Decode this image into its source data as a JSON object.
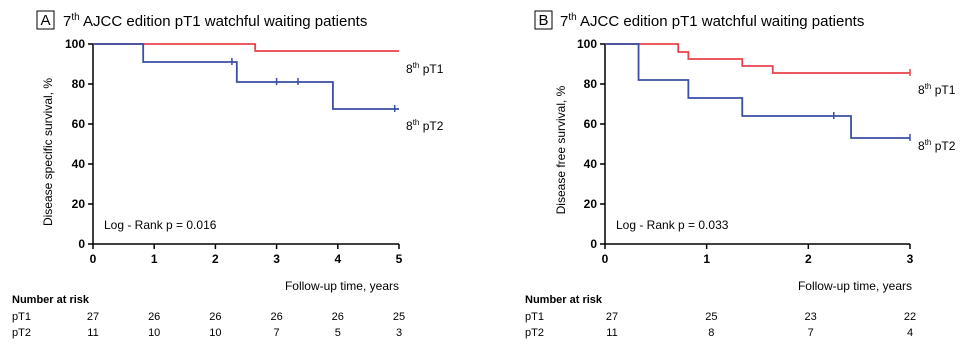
{
  "chart_data": [
    {
      "type": "line",
      "panel_label": "A",
      "title": "7th AJCC edition pT1 watchful waiting patients",
      "title_base": "7",
      "title_sup": "th",
      "title_rest": " AJCC edition pT1 watchful waiting patients",
      "xlabel": "Follow-up time, years",
      "ylabel": "Disease specific survival, %",
      "xlim": [
        0,
        5
      ],
      "ylim": [
        0,
        100
      ],
      "xticks": [
        "0",
        "1",
        "2",
        "3",
        "4",
        "5"
      ],
      "yticks": [
        "0",
        "20",
        "40",
        "60",
        "80",
        "100"
      ],
      "xtick_values": [
        0,
        1,
        2,
        3,
        4,
        5
      ],
      "ytick_values": [
        0,
        20,
        40,
        60,
        80,
        100
      ],
      "annotation": "Log - Rank p = 0.016",
      "series": [
        {
          "name": "8th pT1",
          "label_base": "8",
          "label_sup": "th",
          "label_rest": " pT1",
          "color": "#e8434a",
          "steps": [
            [
              0,
              100
            ],
            [
              2.65,
              96.5
            ],
            [
              5,
              96.5
            ]
          ],
          "censors": []
        },
        {
          "name": "8th pT2",
          "label_base": "8",
          "label_sup": "th",
          "label_rest": " pT2",
          "color": "#3a4fa3",
          "steps": [
            [
              0,
              100
            ],
            [
              0.82,
              91
            ],
            [
              2.35,
              81
            ],
            [
              3.92,
              67.5
            ],
            [
              5,
              67.5
            ]
          ],
          "censors": [
            [
              2.27,
              91
            ],
            [
              3.0,
              81
            ],
            [
              3.35,
              81
            ],
            [
              4.93,
              67.5
            ]
          ]
        }
      ],
      "risk_table": {
        "heading": "Number at risk",
        "times": [
          0,
          1,
          2,
          3,
          4,
          5
        ],
        "rows": [
          {
            "label": "pT1",
            "values": [
              "27",
              "26",
              "26",
              "26",
              "26",
              "25"
            ]
          },
          {
            "label": "pT2",
            "values": [
              "11",
              "10",
              "10",
              "7",
              "5",
              "3"
            ]
          }
        ]
      }
    },
    {
      "type": "line",
      "panel_label": "B",
      "title": "7th AJCC edition pT1 watchful waiting patients",
      "title_base": "7",
      "title_sup": "th",
      "title_rest": " AJCC edition pT1 watchful waiting patients",
      "xlabel": "Follow-up time, years",
      "ylabel": "Disease free survival, %",
      "xlim": [
        0,
        3
      ],
      "ylim": [
        0,
        100
      ],
      "xticks": [
        "0",
        "1",
        "2",
        "3"
      ],
      "yticks": [
        "0",
        "20",
        "40",
        "60",
        "80",
        "100"
      ],
      "xtick_values": [
        0,
        1,
        2,
        3
      ],
      "ytick_values": [
        0,
        20,
        40,
        60,
        80,
        100
      ],
      "annotation": "Log - Rank p = 0.033",
      "series": [
        {
          "name": "8th pT1",
          "label_base": "8",
          "label_sup": "th",
          "label_rest": " pT1",
          "color": "#e8434a",
          "steps": [
            [
              0,
              100
            ],
            [
              0.72,
              96
            ],
            [
              0.82,
              92.5
            ],
            [
              1.35,
              89
            ],
            [
              1.65,
              85.5
            ],
            [
              3,
              85.5
            ]
          ],
          "censors": [
            [
              3,
              85.5
            ]
          ]
        },
        {
          "name": "8th pT2",
          "label_base": "8",
          "label_sup": "th",
          "label_rest": " pT2",
          "color": "#3a4fa3",
          "steps": [
            [
              0,
              100
            ],
            [
              0.33,
              82
            ],
            [
              0.82,
              73
            ],
            [
              1.35,
              64
            ],
            [
              2.42,
              53
            ],
            [
              3,
              53
            ]
          ],
          "censors": [
            [
              2.25,
              64
            ],
            [
              3,
              53
            ]
          ]
        }
      ],
      "risk_table": {
        "heading": "Number at risk",
        "times": [
          0,
          1,
          2,
          3
        ],
        "rows": [
          {
            "label": "pT1",
            "values": [
              "27",
              "25",
              "23",
              "22"
            ]
          },
          {
            "label": "pT2",
            "values": [
              "11",
              "8",
              "7",
              "4"
            ]
          }
        ]
      }
    }
  ]
}
